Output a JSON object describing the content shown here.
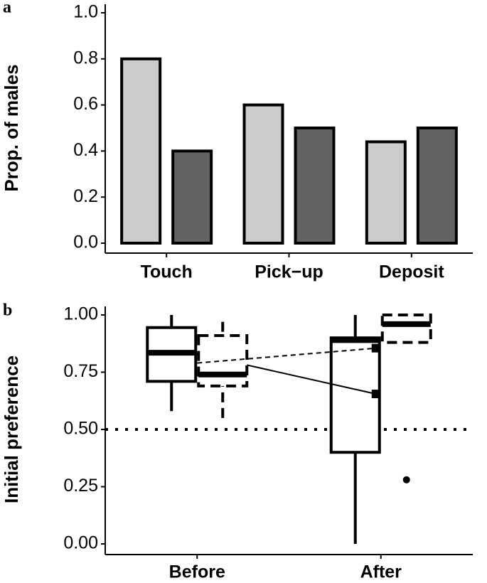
{
  "chart_data": [
    {
      "type": "bar",
      "panel_label": "a",
      "ylabel": "Prop. of males",
      "categories": [
        "Touch",
        "Pick−up",
        "Deposit"
      ],
      "series": [
        {
          "color": "#cccccc",
          "values": [
            0.8,
            0.6,
            0.44
          ]
        },
        {
          "color": "#636363",
          "values": [
            0.4,
            0.5,
            0.5
          ]
        }
      ],
      "ylim": [
        0,
        1
      ],
      "yticks": [
        {
          "value": 0,
          "label": "0.0"
        },
        0.2,
        0.4,
        0.6,
        0.8,
        {
          "value": 1,
          "label": "1.0"
        }
      ]
    },
    {
      "type": "box",
      "panel_label": "b",
      "ylabel": "Initial preference",
      "categories": [
        "Before",
        "After"
      ],
      "series": [
        {
          "linestyle": "solid",
          "min": [
            0.58,
            0.0
          ],
          "q1": [
            0.71,
            0.4
          ],
          "median": [
            0.835,
            0.89
          ],
          "q3": [
            0.945,
            0.9
          ],
          "max": [
            1.0,
            1.0
          ],
          "mean": [
            0.83,
            0.655
          ],
          "outliers": [
            [],
            []
          ]
        },
        {
          "linestyle": "dashed",
          "min": [
            0.55,
            0.88
          ],
          "q1": [
            0.69,
            0.88
          ],
          "median": [
            0.74,
            0.96
          ],
          "q3": [
            0.91,
            1.0
          ],
          "max": [
            0.97,
            1.0
          ],
          "mean": [
            0.79,
            0.855
          ],
          "outliers": [
            [],
            [
              0.28
            ]
          ]
        }
      ],
      "hline": 0.5,
      "ylim": [
        0,
        1
      ],
      "yticks": [
        {
          "value": 0,
          "label": "0.00"
        },
        {
          "value": 0.25,
          "label": "0.25"
        },
        {
          "value": 0.5,
          "label": "0.50"
        },
        {
          "value": 0.75,
          "label": "0.75"
        },
        {
          "value": 1,
          "label": "1.00"
        }
      ]
    }
  ]
}
